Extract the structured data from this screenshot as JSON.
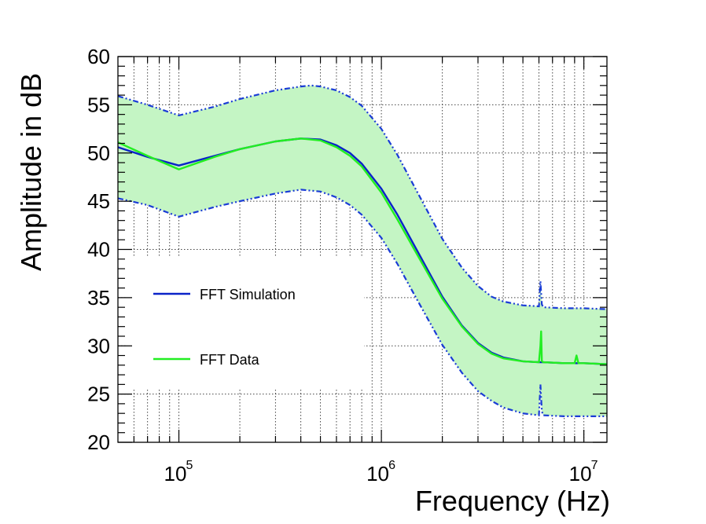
{
  "chart_data": {
    "type": "line",
    "xscale": "log",
    "xlim": [
      50000,
      13000000
    ],
    "ylim": [
      20,
      60
    ],
    "grid": true,
    "xlabel": "Frequency (Hz)",
    "ylabel": "Amplitude in dB",
    "yticks": [
      20,
      25,
      30,
      35,
      40,
      45,
      50,
      55,
      60
    ],
    "xticks": [
      {
        "base": "10",
        "exp": "5",
        "value": 100000
      },
      {
        "base": "10",
        "exp": "6",
        "value": 1000000
      },
      {
        "base": "10",
        "exp": "7",
        "value": 10000000
      }
    ],
    "legend": {
      "placement": "center-left",
      "entries": [
        {
          "label": "FFT Simulation",
          "color": "#0a23c8"
        },
        {
          "label": "FFT Data",
          "color": "#22ee22"
        }
      ]
    },
    "band": {
      "fill": "#c4f5c4",
      "edge_color": "#1a3cd6",
      "upper": {
        "x": [
          50000,
          70000,
          100000,
          150000,
          200000,
          300000,
          400000,
          450000,
          500000,
          600000,
          700000,
          800000,
          1000000,
          1200000,
          1500000,
          2000000,
          2500000,
          3000000,
          3500000,
          4000000,
          5000000,
          6000000,
          6100000,
          6200000,
          6300000,
          8000000,
          10000000,
          13000000
        ],
        "y": [
          55.9,
          55.0,
          53.9,
          54.8,
          55.6,
          56.5,
          56.9,
          57.0,
          56.9,
          56.5,
          55.8,
          54.9,
          52.5,
          49.8,
          46.0,
          41.1,
          38.1,
          36.2,
          35.1,
          34.6,
          34.2,
          34.1,
          36.7,
          34.3,
          34.0,
          33.9,
          33.9,
          33.8
        ]
      },
      "lower": {
        "x": [
          50000,
          70000,
          100000,
          150000,
          200000,
          300000,
          400000,
          500000,
          600000,
          700000,
          800000,
          1000000,
          1200000,
          1500000,
          2000000,
          2500000,
          3000000,
          3500000,
          4000000,
          5000000,
          6000000,
          6100000,
          6200000,
          6300000,
          8000000,
          10000000,
          13000000
        ],
        "y": [
          45.3,
          44.6,
          43.4,
          44.4,
          45.0,
          45.8,
          46.2,
          46.0,
          45.4,
          44.6,
          43.6,
          41.2,
          38.5,
          34.8,
          30.1,
          27.2,
          25.3,
          24.3,
          23.6,
          23.0,
          22.8,
          26.0,
          23.2,
          22.8,
          22.7,
          22.7,
          22.7
        ]
      }
    },
    "series": [
      {
        "name": "FFT Simulation",
        "color": "#0a23c8",
        "x": [
          50000,
          70000,
          100000,
          150000,
          200000,
          300000,
          400000,
          500000,
          600000,
          700000,
          800000,
          1000000,
          1200000,
          1500000,
          2000000,
          2500000,
          3000000,
          3500000,
          4000000,
          5000000,
          6000000,
          6100000,
          6200000,
          6300000,
          8000000,
          10000000,
          13000000
        ],
        "y": [
          50.6,
          49.6,
          48.7,
          49.7,
          50.4,
          51.2,
          51.5,
          51.4,
          50.8,
          50.0,
          48.9,
          46.3,
          43.6,
          39.9,
          35.1,
          32.1,
          30.3,
          29.3,
          28.8,
          28.4,
          28.3,
          28.3,
          28.3,
          28.3,
          28.2,
          28.2,
          28.1
        ]
      },
      {
        "name": "FFT Data",
        "color": "#22ee22",
        "x": [
          50000,
          70000,
          100000,
          150000,
          200000,
          300000,
          400000,
          500000,
          600000,
          700000,
          800000,
          1000000,
          1200000,
          1500000,
          2000000,
          2500000,
          3000000,
          3500000,
          4000000,
          5000000,
          6000000,
          6100000,
          6150000,
          6200000,
          6300000,
          8000000,
          9000000,
          9200000,
          9400000,
          10000000,
          13000000
        ],
        "y": [
          51.1,
          49.7,
          48.3,
          49.6,
          50.4,
          51.2,
          51.5,
          51.3,
          50.6,
          49.7,
          48.6,
          45.9,
          43.1,
          39.5,
          34.9,
          32.0,
          30.2,
          29.2,
          28.7,
          28.4,
          28.3,
          30.0,
          31.5,
          28.4,
          28.3,
          28.2,
          28.2,
          29.0,
          28.2,
          28.2,
          28.1
        ]
      }
    ]
  }
}
